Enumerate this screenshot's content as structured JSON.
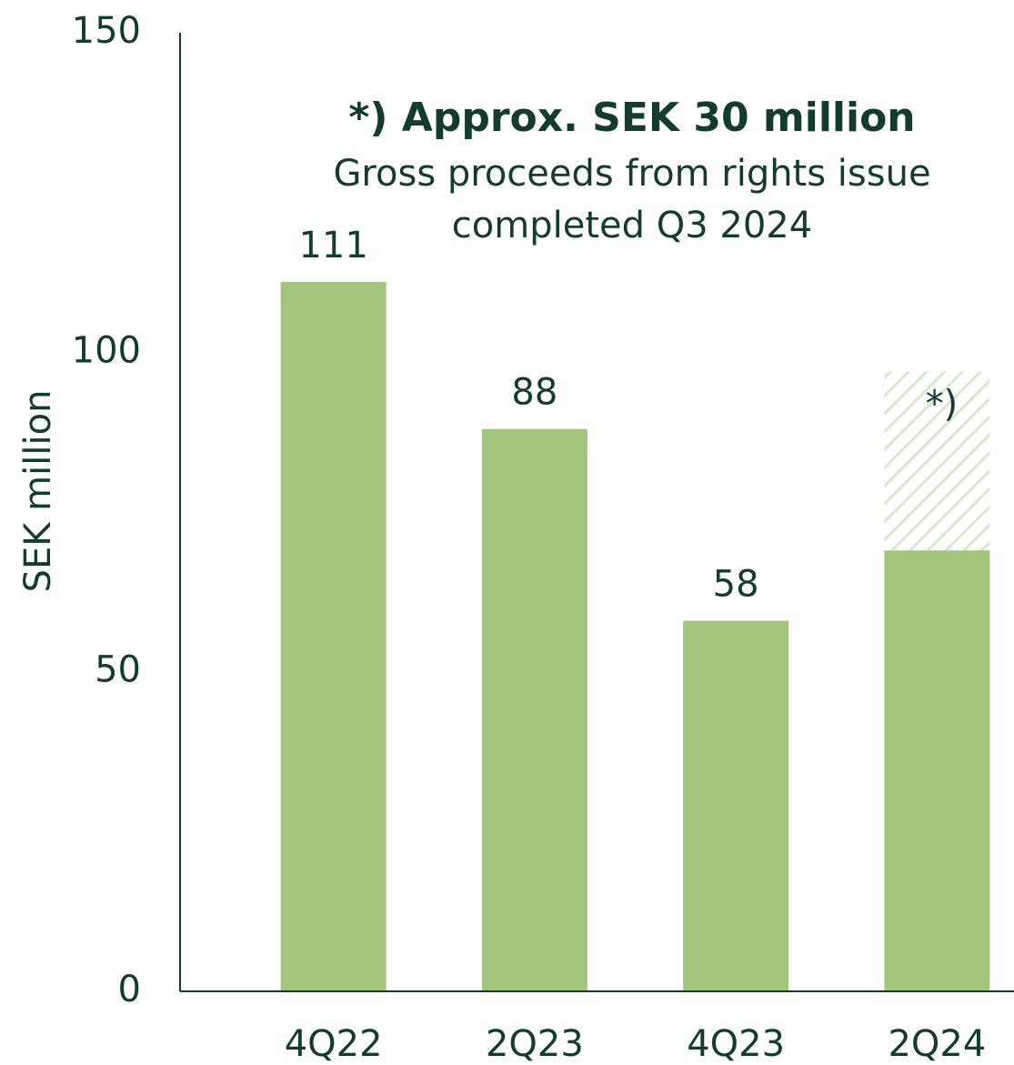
{
  "chart_data": {
    "type": "bar",
    "stacked": true,
    "title": "*) Approx. SEK 30 million",
    "subtitle": [
      "Gross proceeds from rights issue",
      "completed Q3 2024"
    ],
    "y_label": "SEK million",
    "categories": [
      "4Q22",
      "2Q23",
      "4Q23",
      "2Q24"
    ],
    "series": [
      {
        "color": "#a2c57c",
        "values": [
          111,
          88,
          58,
          69
        ]
      },
      {
        "color": "#d9e8c8",
        "pattern": "hatch",
        "values": [
          null,
          null,
          null,
          28
        ],
        "marker_text": "*)"
      }
    ],
    "ylim": [
      0,
      150
    ],
    "yticks": [
      0,
      50,
      100,
      150
    ],
    "grid": false
  }
}
